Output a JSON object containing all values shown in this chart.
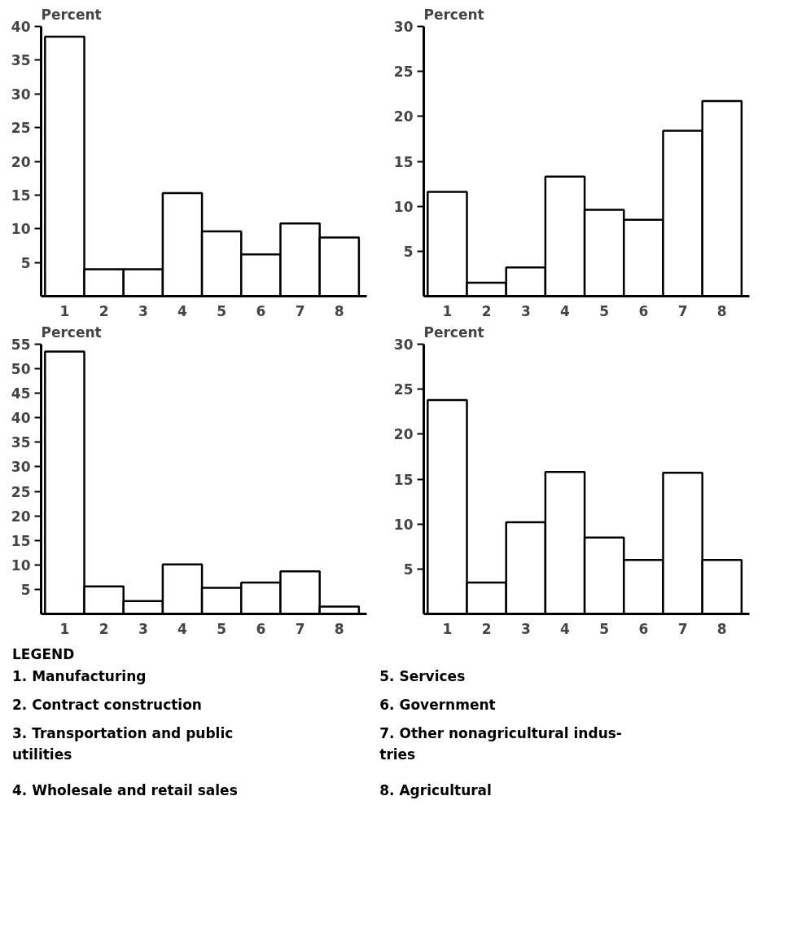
{
  "chart_data": [
    {
      "type": "bar",
      "ylabel": "Percent",
      "categories": [
        "1",
        "2",
        "3",
        "4",
        "5",
        "6",
        "7",
        "8"
      ],
      "values": [
        38.5,
        4,
        4,
        15.3,
        9.6,
        6.2,
        10.8,
        8.7
      ],
      "color": "#ffffff",
      "ylim": [
        0,
        40
      ],
      "yticks": [
        5,
        10,
        15,
        20,
        25,
        30,
        35,
        40
      ],
      "grid": false,
      "legend": false
    },
    {
      "type": "bar",
      "ylabel": "Percent",
      "categories": [
        "1",
        "2",
        "3",
        "4",
        "5",
        "6",
        "7",
        "8"
      ],
      "values": [
        11.6,
        1.5,
        3.2,
        13.3,
        9.6,
        8.5,
        18.4,
        21.7
      ],
      "color": "#ffffff",
      "ylim": [
        0,
        30
      ],
      "yticks": [
        5,
        10,
        15,
        20,
        25,
        30
      ],
      "grid": false,
      "legend": false
    },
    {
      "type": "bar",
      "ylabel": "Percent",
      "categories": [
        "1",
        "2",
        "3",
        "4",
        "5",
        "6",
        "7",
        "8"
      ],
      "values": [
        53.5,
        5.6,
        2.6,
        10.1,
        5.3,
        6.4,
        8.7,
        1.5
      ],
      "color": "#ffffff",
      "ylim": [
        0,
        55
      ],
      "yticks": [
        5,
        10,
        15,
        20,
        25,
        30,
        35,
        40,
        45,
        50,
        55
      ],
      "grid": false,
      "legend": false
    },
    {
      "type": "bar",
      "ylabel": "Percent",
      "categories": [
        "1",
        "2",
        "3",
        "4",
        "5",
        "6",
        "7",
        "8"
      ],
      "values": [
        23.8,
        3.5,
        10.2,
        15.8,
        8.5,
        6,
        15.7,
        6
      ],
      "color": "#ffffff",
      "ylim": [
        0,
        30
      ],
      "yticks": [
        5,
        10,
        15,
        20,
        25,
        30
      ],
      "grid": false,
      "legend": false
    },
    {
      "type": "other",
      "title": "LEGEND",
      "annotations": [
        "1.  Manufacturing",
        "2.  Contract construction",
        "3.  Transportation and public\n    utilities",
        "4.  Wholesale and retail sales",
        "5.  Services",
        "6.  Government",
        "7.  Other nonagricultural indus-\n    tries",
        "8.  Agricultural"
      ]
    }
  ]
}
